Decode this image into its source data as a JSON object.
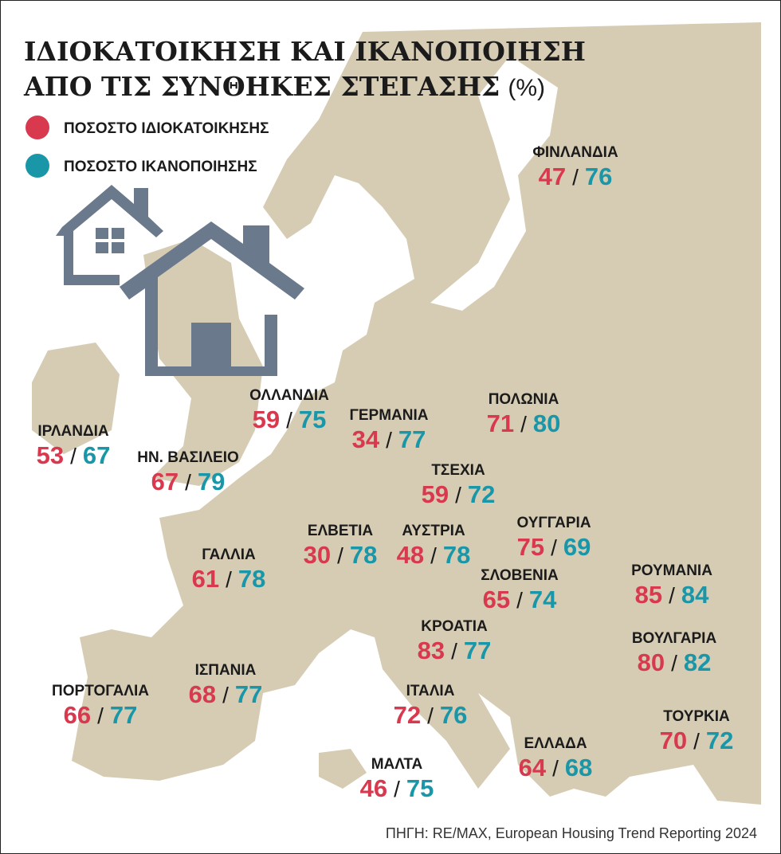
{
  "header": {
    "title_line1": "ΙΔΙΟΚΑΤΟΙΚΗΣΗ ΚΑΙ ΙΚΑΝΟΠΟΙΗΣΗ",
    "title_line2": "ΑΠΟ ΤΙΣ ΣΥΝΘΗΚΕΣ ΣΤΕΓΑΣΗΣ",
    "unit": "(%)"
  },
  "legend": [
    {
      "label": "ΠΟΣΟΣΤΟ ΙΔΙΟΚΑΤΟΙΚΗΣΗΣ",
      "color": "#d8394f"
    },
    {
      "label": "ΠΟΣΟΣΤΟ ΙΚΑΝΟΠΟΙΗΣΗΣ",
      "color": "#1996a8"
    }
  ],
  "separator": "/",
  "countries": [
    {
      "name": "ΦΙΝΛΑΝΔΙΑ",
      "ownership": 47,
      "satisfaction": 76
    },
    {
      "name": "ΙΡΛΑΝΔΙΑ",
      "ownership": 53,
      "satisfaction": 67
    },
    {
      "name": "ΗΝ. ΒΑΣΙΛΕΙΟ",
      "ownership": 67,
      "satisfaction": 79
    },
    {
      "name": "ΟΛΛΑΝΔΙΑ",
      "ownership": 59,
      "satisfaction": 75
    },
    {
      "name": "ΓΕΡΜΑΝΙΑ",
      "ownership": 34,
      "satisfaction": 77
    },
    {
      "name": "ΠΟΛΩΝΙΑ",
      "ownership": 71,
      "satisfaction": 80
    },
    {
      "name": "ΤΣΕΧΙΑ",
      "ownership": 59,
      "satisfaction": 72
    },
    {
      "name": "ΕΛΒΕΤΙΑ",
      "ownership": 30,
      "satisfaction": 78
    },
    {
      "name": "ΑΥΣΤΡΙΑ",
      "ownership": 48,
      "satisfaction": 78
    },
    {
      "name": "ΟΥΓΓΑΡΙΑ",
      "ownership": 75,
      "satisfaction": 69
    },
    {
      "name": "ΓΑΛΛΙΑ",
      "ownership": 61,
      "satisfaction": 78
    },
    {
      "name": "ΣΛΟΒΕΝΙΑ",
      "ownership": 65,
      "satisfaction": 74
    },
    {
      "name": "ΡΟΥΜΑΝΙΑ",
      "ownership": 85,
      "satisfaction": 84
    },
    {
      "name": "ΚΡΟΑΤΙΑ",
      "ownership": 83,
      "satisfaction": 77
    },
    {
      "name": "ΒΟΥΛΓΑΡΙΑ",
      "ownership": 80,
      "satisfaction": 82
    },
    {
      "name": "ΙΣΠΑΝΙΑ",
      "ownership": 68,
      "satisfaction": 77
    },
    {
      "name": "ΠΟΡΤΟΓΑΛΙΑ",
      "ownership": 66,
      "satisfaction": 77
    },
    {
      "name": "ΙΤΑΛΙΑ",
      "ownership": 72,
      "satisfaction": 76
    },
    {
      "name": "ΤΟΥΡΚΙΑ",
      "ownership": 70,
      "satisfaction": 72
    },
    {
      "name": "ΕΛΛΑΔΑ",
      "ownership": 64,
      "satisfaction": 68
    },
    {
      "name": "ΜΑΛΤΑ",
      "ownership": 46,
      "satisfaction": 75
    }
  ],
  "source": "ΠΗΓΗ: RE/MAX, European Housing Trend Reporting 2024"
}
